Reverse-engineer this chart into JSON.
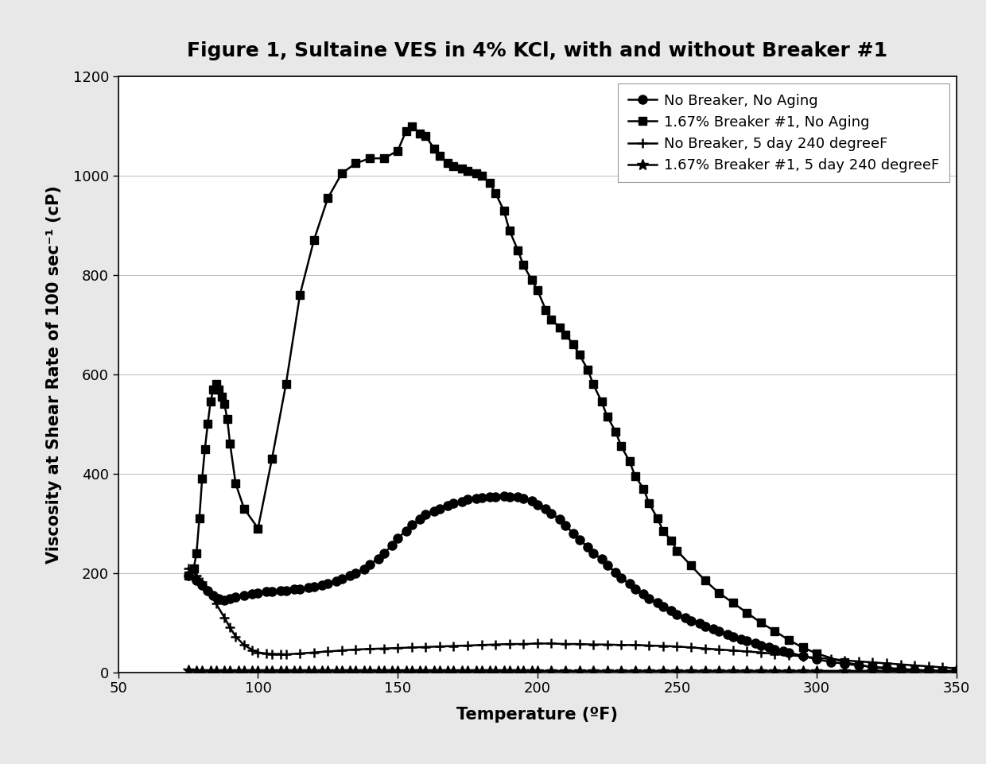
{
  "title": "Figure 1, Sultaine VES in 4% KCl, with and without Breaker #1",
  "xlabel": "Temperature (ºF)",
  "ylabel": "Viscosity at Shear Rate of 100 sec⁻¹ (cP)",
  "xlim": [
    50,
    350
  ],
  "ylim": [
    0,
    1200
  ],
  "xticks": [
    50,
    100,
    150,
    200,
    250,
    300,
    350
  ],
  "yticks": [
    0,
    200,
    400,
    600,
    800,
    1000,
    1200
  ],
  "series": [
    {
      "label": "No Breaker, No Aging",
      "marker": "o",
      "markersize": 8,
      "linestyle": "-",
      "color": "#000000",
      "x": [
        75,
        78,
        80,
        82,
        84,
        86,
        88,
        90,
        92,
        95,
        98,
        100,
        103,
        105,
        108,
        110,
        113,
        115,
        118,
        120,
        123,
        125,
        128,
        130,
        133,
        135,
        138,
        140,
        143,
        145,
        148,
        150,
        153,
        155,
        158,
        160,
        163,
        165,
        168,
        170,
        173,
        175,
        178,
        180,
        183,
        185,
        188,
        190,
        193,
        195,
        198,
        200,
        203,
        205,
        208,
        210,
        213,
        215,
        218,
        220,
        223,
        225,
        228,
        230,
        233,
        235,
        238,
        240,
        243,
        245,
        248,
        250,
        253,
        255,
        258,
        260,
        263,
        265,
        268,
        270,
        273,
        275,
        278,
        280,
        283,
        285,
        288,
        290,
        295,
        300,
        305,
        310,
        315,
        320,
        325,
        330,
        335,
        340,
        345,
        350
      ],
      "y": [
        195,
        185,
        175,
        165,
        155,
        148,
        145,
        148,
        152,
        155,
        158,
        160,
        162,
        163,
        164,
        165,
        167,
        168,
        170,
        172,
        175,
        178,
        183,
        188,
        195,
        200,
        208,
        218,
        228,
        240,
        255,
        270,
        285,
        298,
        308,
        318,
        325,
        330,
        335,
        340,
        344,
        348,
        350,
        352,
        353,
        354,
        355,
        354,
        353,
        350,
        345,
        338,
        330,
        320,
        308,
        295,
        280,
        267,
        253,
        240,
        228,
        215,
        202,
        190,
        178,
        168,
        158,
        148,
        140,
        132,
        124,
        117,
        110,
        104,
        98,
        92,
        87,
        82,
        77,
        72,
        67,
        63,
        58,
        54,
        50,
        46,
        43,
        40,
        33,
        26,
        21,
        17,
        14,
        11,
        9,
        7,
        5,
        4,
        3,
        2
      ]
    },
    {
      "label": "1.67% Breaker #1, No Aging",
      "marker": "s",
      "markersize": 7,
      "linestyle": "-",
      "color": "#000000",
      "x": [
        75,
        77,
        78,
        79,
        80,
        81,
        82,
        83,
        84,
        85,
        86,
        87,
        88,
        89,
        90,
        92,
        95,
        100,
        105,
        110,
        115,
        120,
        125,
        130,
        135,
        140,
        145,
        150,
        153,
        155,
        158,
        160,
        163,
        165,
        168,
        170,
        173,
        175,
        178,
        180,
        183,
        185,
        188,
        190,
        193,
        195,
        198,
        200,
        203,
        205,
        208,
        210,
        213,
        215,
        218,
        220,
        223,
        225,
        228,
        230,
        233,
        235,
        238,
        240,
        243,
        245,
        248,
        250,
        255,
        260,
        265,
        270,
        275,
        280,
        285,
        290,
        295,
        300,
        310,
        320,
        330,
        340,
        350
      ],
      "y": [
        195,
        210,
        240,
        310,
        390,
        450,
        500,
        545,
        570,
        580,
        570,
        555,
        540,
        510,
        460,
        380,
        330,
        290,
        430,
        580,
        760,
        870,
        955,
        1005,
        1025,
        1035,
        1035,
        1050,
        1090,
        1100,
        1085,
        1080,
        1055,
        1040,
        1025,
        1020,
        1015,
        1010,
        1005,
        1000,
        985,
        965,
        930,
        890,
        850,
        820,
        790,
        770,
        730,
        710,
        695,
        680,
        660,
        640,
        610,
        580,
        545,
        515,
        485,
        455,
        425,
        395,
        370,
        340,
        310,
        285,
        265,
        245,
        215,
        185,
        160,
        140,
        120,
        100,
        83,
        65,
        50,
        38,
        20,
        10,
        5,
        3,
        2
      ]
    },
    {
      "label": "No Breaker, 5 day 240 degreeF",
      "marker": "+",
      "markersize": 9,
      "markeredgewidth": 1.8,
      "linestyle": "-",
      "color": "#000000",
      "x": [
        75,
        78,
        80,
        82,
        85,
        88,
        90,
        92,
        95,
        98,
        100,
        103,
        105,
        108,
        110,
        115,
        120,
        125,
        130,
        135,
        140,
        145,
        150,
        155,
        160,
        165,
        170,
        175,
        180,
        185,
        190,
        195,
        200,
        205,
        210,
        215,
        220,
        225,
        230,
        235,
        240,
        245,
        250,
        255,
        260,
        265,
        270,
        275,
        280,
        285,
        290,
        295,
        300,
        305,
        310,
        315,
        320,
        325,
        330,
        335,
        340,
        345,
        350
      ],
      "y": [
        210,
        195,
        182,
        165,
        138,
        110,
        90,
        72,
        55,
        45,
        40,
        38,
        37,
        37,
        36,
        38,
        40,
        42,
        44,
        46,
        47,
        48,
        49,
        50,
        51,
        52,
        53,
        54,
        55,
        56,
        57,
        57,
        58,
        58,
        57,
        57,
        56,
        56,
        55,
        55,
        54,
        53,
        52,
        50,
        48,
        46,
        44,
        42,
        40,
        37,
        35,
        32,
        29,
        27,
        24,
        22,
        20,
        18,
        16,
        14,
        12,
        10,
        8
      ]
    },
    {
      "label": "1.67% Breaker #1, 5 day 240 degreeF",
      "marker": "*",
      "markersize": 10,
      "linestyle": "-",
      "color": "#000000",
      "x": [
        75,
        78,
        80,
        83,
        85,
        88,
        90,
        93,
        95,
        98,
        100,
        103,
        105,
        108,
        110,
        113,
        115,
        118,
        120,
        123,
        125,
        128,
        130,
        133,
        135,
        138,
        140,
        143,
        145,
        148,
        150,
        153,
        155,
        158,
        160,
        163,
        165,
        168,
        170,
        173,
        175,
        178,
        180,
        183,
        185,
        188,
        190,
        193,
        195,
        198,
        200,
        205,
        210,
        215,
        220,
        225,
        230,
        235,
        240,
        245,
        250,
        255,
        260,
        265,
        270,
        275,
        280,
        285,
        290,
        295,
        300,
        310,
        320,
        330,
        340,
        350
      ],
      "y": [
        4,
        3,
        3,
        3,
        3,
        3,
        3,
        3,
        3,
        3,
        3,
        3,
        3,
        3,
        3,
        3,
        3,
        3,
        3,
        3,
        3,
        3,
        3,
        3,
        3,
        3,
        3,
        3,
        3,
        3,
        3,
        3,
        3,
        3,
        3,
        3,
        3,
        3,
        3,
        3,
        3,
        3,
        3,
        3,
        3,
        3,
        3,
        3,
        3,
        3,
        3,
        3,
        3,
        3,
        3,
        3,
        3,
        3,
        3,
        3,
        3,
        3,
        3,
        3,
        3,
        3,
        3,
        3,
        3,
        3,
        3,
        3,
        3,
        3,
        3,
        3
      ]
    }
  ],
  "background_color": "#ffffff",
  "outer_background": "#e8e8e8",
  "grid_color": "#aaaaaa",
  "title_fontsize": 18,
  "label_fontsize": 15,
  "tick_fontsize": 13,
  "legend_fontsize": 13,
  "linewidth": 1.8
}
